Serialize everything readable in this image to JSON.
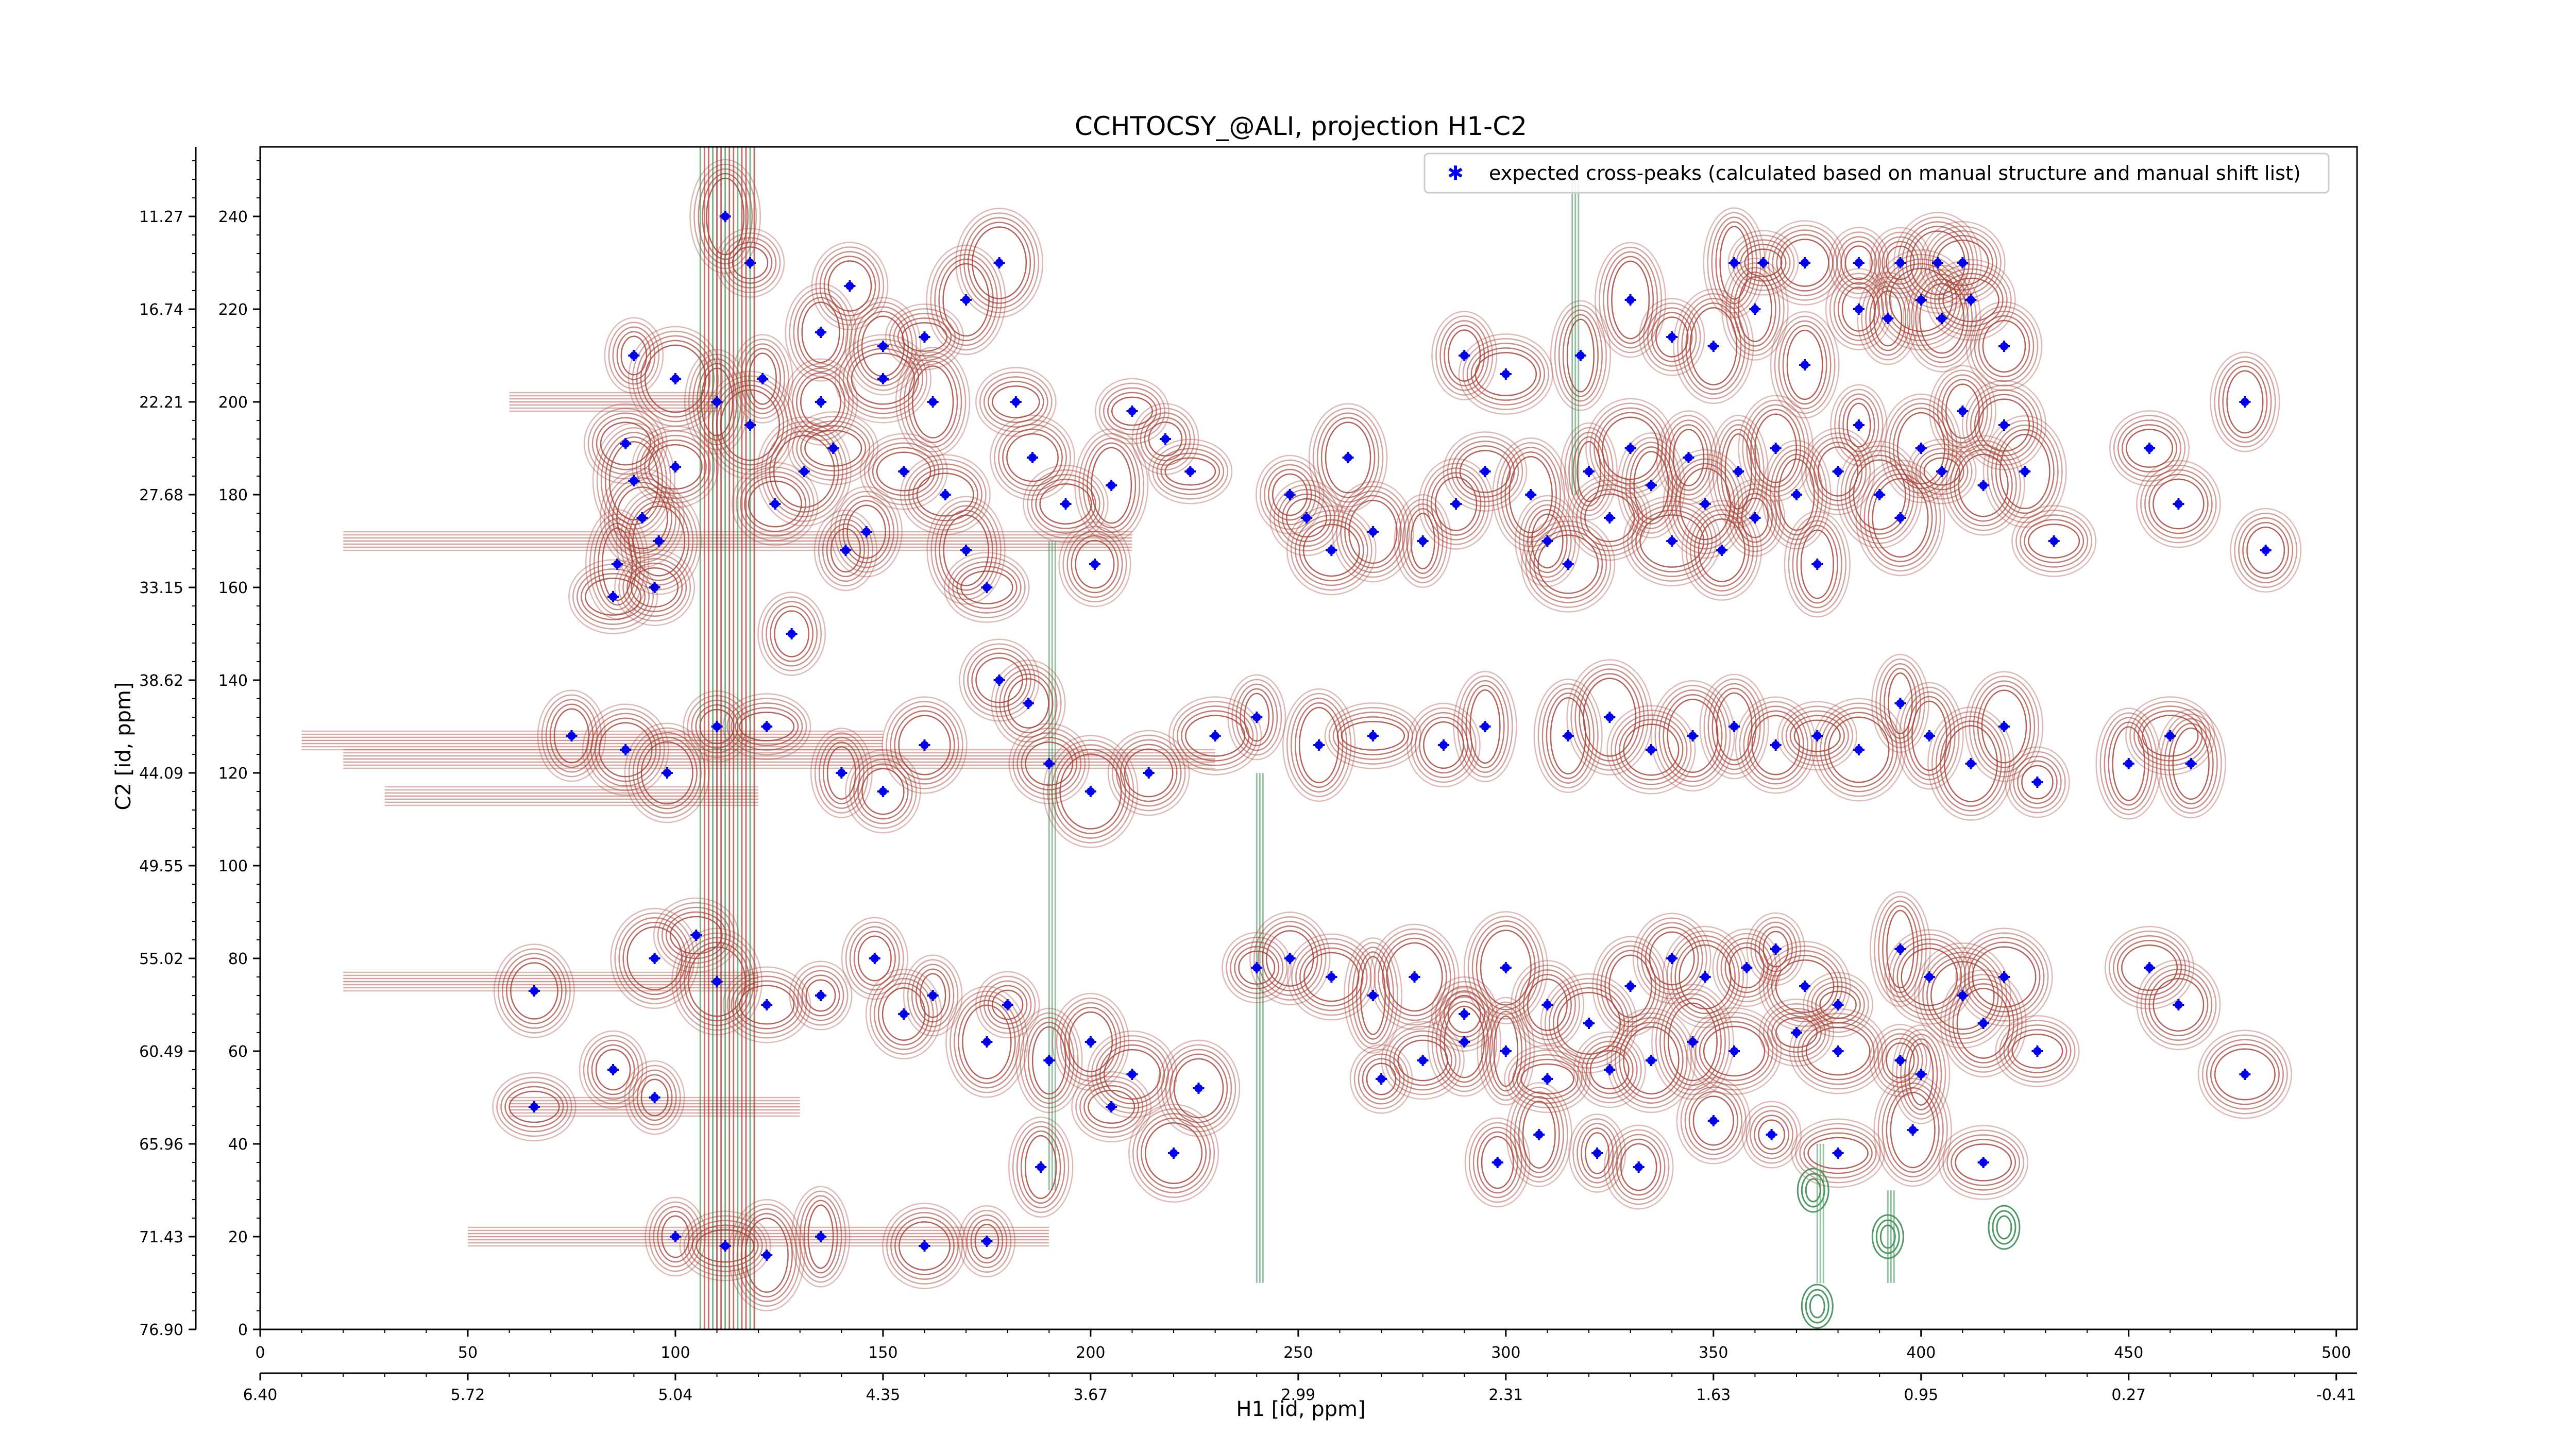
{
  "chart_data": {
    "type": "scatter",
    "title": "CCHTOCSY_@ALI, projection H1-C2",
    "xlabel": "H1 [id, ppm]",
    "ylabel": "C2 [id, ppm]",
    "x_index_range": [
      0,
      505
    ],
    "y_index_range": [
      0,
      255
    ],
    "x_index_ticks": [
      "0",
      "50",
      "100",
      "150",
      "200",
      "250",
      "300",
      "350",
      "400",
      "450",
      "500"
    ],
    "x_ppm_ticks": [
      "6.40",
      "5.72",
      "5.04",
      "4.35",
      "3.67",
      "2.99",
      "2.31",
      "1.63",
      "0.95",
      "0.27",
      "-0.41"
    ],
    "y_index_ticks": [
      "0",
      "20",
      "40",
      "60",
      "80",
      "100",
      "120",
      "140",
      "160",
      "180",
      "200",
      "220",
      "240"
    ],
    "y_ppm_ticks": [
      "76.90",
      "71.43",
      "65.96",
      "60.49",
      "55.02",
      "49.55",
      "44.09",
      "38.62",
      "33.15",
      "27.68",
      "22.21",
      "16.74",
      "11.27"
    ],
    "legend": {
      "label": "expected cross-peaks (calculated based on manual structure and manual shift list)",
      "position": "top-right"
    },
    "grid": false,
    "colors": {
      "positive_contours": "#a8453a",
      "negative_contours": "#4f9a64",
      "peaks": "#0000ee"
    },
    "series": [
      {
        "name": "expected cross-peaks (calculated based on manual structure and manual shift list)",
        "points": [
          [
            88,
            191
          ],
          [
            90,
            183
          ],
          [
            92,
            175
          ],
          [
            86,
            165
          ],
          [
            96,
            170
          ],
          [
            100,
            186
          ],
          [
            85,
            158
          ],
          [
            95,
            160
          ],
          [
            110,
            200
          ],
          [
            118,
            195
          ],
          [
            121,
            205
          ],
          [
            124,
            178
          ],
          [
            128,
            150
          ],
          [
            131,
            185
          ],
          [
            135,
            200
          ],
          [
            138,
            190
          ],
          [
            141,
            168
          ],
          [
            146,
            172
          ],
          [
            150,
            205
          ],
          [
            155,
            185
          ],
          [
            162,
            200
          ],
          [
            165,
            180
          ],
          [
            170,
            168
          ],
          [
            175,
            160
          ],
          [
            182,
            200
          ],
          [
            186,
            188
          ],
          [
            194,
            178
          ],
          [
            201,
            165
          ],
          [
            205,
            182
          ],
          [
            210,
            198
          ],
          [
            218,
            192
          ],
          [
            224,
            185
          ],
          [
            248,
            180
          ],
          [
            252,
            175
          ],
          [
            258,
            168
          ],
          [
            262,
            188
          ],
          [
            268,
            172
          ],
          [
            280,
            170
          ],
          [
            288,
            178
          ],
          [
            295,
            185
          ],
          [
            306,
            180
          ],
          [
            310,
            170
          ],
          [
            315,
            165
          ],
          [
            320,
            185
          ],
          [
            325,
            175
          ],
          [
            330,
            190
          ],
          [
            335,
            182
          ],
          [
            340,
            170
          ],
          [
            344,
            188
          ],
          [
            348,
            178
          ],
          [
            352,
            168
          ],
          [
            356,
            185
          ],
          [
            360,
            175
          ],
          [
            365,
            190
          ],
          [
            370,
            180
          ],
          [
            375,
            165
          ],
          [
            380,
            185
          ],
          [
            385,
            195
          ],
          [
            390,
            180
          ],
          [
            395,
            175
          ],
          [
            400,
            190
          ],
          [
            405,
            185
          ],
          [
            410,
            198
          ],
          [
            415,
            182
          ],
          [
            420,
            195
          ],
          [
            425,
            185
          ],
          [
            432,
            170
          ],
          [
            455,
            190
          ],
          [
            462,
            178
          ],
          [
            478,
            200
          ],
          [
            483,
            168
          ],
          [
            385,
            220
          ],
          [
            392,
            218
          ],
          [
            400,
            222
          ],
          [
            405,
            218
          ],
          [
            412,
            222
          ],
          [
            420,
            212
          ],
          [
            355,
            230
          ],
          [
            362,
            230
          ],
          [
            372,
            230
          ],
          [
            385,
            230
          ],
          [
            395,
            230
          ],
          [
            404,
            230
          ],
          [
            410,
            230
          ],
          [
            290,
            210
          ],
          [
            300,
            206
          ],
          [
            318,
            210
          ],
          [
            330,
            222
          ],
          [
            340,
            214
          ],
          [
            350,
            212
          ],
          [
            360,
            220
          ],
          [
            372,
            208
          ],
          [
            75,
            128
          ],
          [
            88,
            125
          ],
          [
            98,
            120
          ],
          [
            110,
            130
          ],
          [
            122,
            130
          ],
          [
            140,
            120
          ],
          [
            150,
            116
          ],
          [
            160,
            126
          ],
          [
            178,
            140
          ],
          [
            185,
            135
          ],
          [
            190,
            122
          ],
          [
            200,
            116
          ],
          [
            214,
            120
          ],
          [
            230,
            128
          ],
          [
            240,
            132
          ],
          [
            255,
            126
          ],
          [
            268,
            128
          ],
          [
            285,
            126
          ],
          [
            295,
            130
          ],
          [
            315,
            128
          ],
          [
            325,
            132
          ],
          [
            335,
            125
          ],
          [
            345,
            128
          ],
          [
            355,
            130
          ],
          [
            365,
            126
          ],
          [
            375,
            128
          ],
          [
            385,
            125
          ],
          [
            395,
            135
          ],
          [
            402,
            128
          ],
          [
            412,
            122
          ],
          [
            420,
            130
          ],
          [
            428,
            118
          ],
          [
            450,
            122
          ],
          [
            460,
            128
          ],
          [
            465,
            122
          ],
          [
            95,
            80
          ],
          [
            105,
            85
          ],
          [
            110,
            75
          ],
          [
            122,
            70
          ],
          [
            135,
            72
          ],
          [
            148,
            80
          ],
          [
            155,
            68
          ],
          [
            162,
            72
          ],
          [
            175,
            62
          ],
          [
            180,
            70
          ],
          [
            190,
            58
          ],
          [
            200,
            62
          ],
          [
            205,
            48
          ],
          [
            210,
            55
          ],
          [
            226,
            52
          ],
          [
            240,
            78
          ],
          [
            248,
            80
          ],
          [
            258,
            76
          ],
          [
            268,
            72
          ],
          [
            278,
            76
          ],
          [
            290,
            68
          ],
          [
            300,
            78
          ],
          [
            310,
            70
          ],
          [
            320,
            66
          ],
          [
            330,
            74
          ],
          [
            340,
            80
          ],
          [
            348,
            76
          ],
          [
            358,
            78
          ],
          [
            365,
            82
          ],
          [
            372,
            74
          ],
          [
            380,
            70
          ],
          [
            395,
            82
          ],
          [
            402,
            76
          ],
          [
            410,
            72
          ],
          [
            415,
            66
          ],
          [
            420,
            76
          ],
          [
            428,
            60
          ],
          [
            455,
            78
          ],
          [
            462,
            70
          ],
          [
            478,
            55
          ],
          [
            400,
            55
          ],
          [
            395,
            58
          ],
          [
            380,
            60
          ],
          [
            370,
            64
          ],
          [
            355,
            60
          ],
          [
            345,
            62
          ],
          [
            335,
            58
          ],
          [
            325,
            56
          ],
          [
            310,
            54
          ],
          [
            300,
            60
          ],
          [
            290,
            62
          ],
          [
            280,
            58
          ],
          [
            270,
            54
          ],
          [
            66,
            73
          ],
          [
            66,
            48
          ],
          [
            85,
            56
          ],
          [
            95,
            50
          ],
          [
            100,
            20
          ],
          [
            112,
            18
          ],
          [
            122,
            16
          ],
          [
            135,
            20
          ],
          [
            160,
            18
          ],
          [
            175,
            19
          ],
          [
            188,
            35
          ],
          [
            220,
            38
          ],
          [
            298,
            36
          ],
          [
            308,
            42
          ],
          [
            322,
            38
          ],
          [
            332,
            35
          ],
          [
            350,
            45
          ],
          [
            364,
            42
          ],
          [
            380,
            38
          ],
          [
            398,
            43
          ],
          [
            415,
            36
          ],
          [
            90,
            210
          ],
          [
            100,
            205
          ],
          [
            112,
            240
          ],
          [
            118,
            230
          ],
          [
            135,
            215
          ],
          [
            142,
            225
          ],
          [
            150,
            212
          ],
          [
            160,
            214
          ],
          [
            170,
            222
          ],
          [
            178,
            230
          ]
        ]
      }
    ]
  }
}
